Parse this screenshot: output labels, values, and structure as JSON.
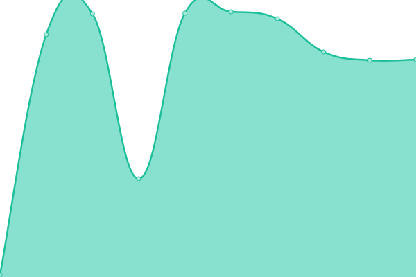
{
  "chart_data": {
    "type": "area",
    "title": "",
    "xlabel": "",
    "ylabel": "",
    "x": [
      0,
      1,
      2,
      3,
      4,
      5,
      6,
      7,
      8,
      9
    ],
    "values": [
      3,
      350,
      380,
      142,
      381,
      383,
      373,
      325,
      313,
      314
    ],
    "ylim": [
      0,
      400
    ],
    "grid": false,
    "legend": "none",
    "smooth": true,
    "colors": {
      "fill": "#88e0cf",
      "line": "#1dbf9a",
      "point_fill": "#a8ebdd",
      "point_stroke": "#1dbf9a"
    }
  }
}
